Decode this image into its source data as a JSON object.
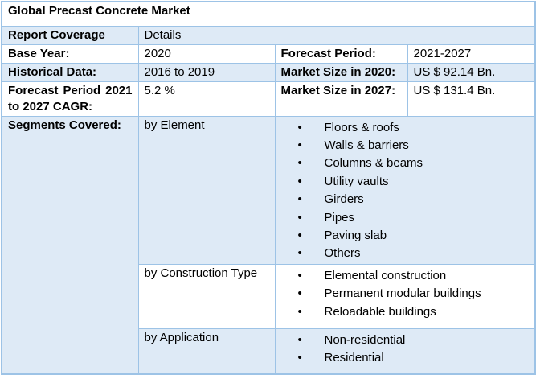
{
  "colors": {
    "band_fill": "#DEEAF6",
    "border": "#9DC3E6",
    "text": "#000000",
    "background": "#FFFFFF"
  },
  "table": {
    "title": "Global Precast Concrete Market",
    "coverage": {
      "label": "Report Coverage",
      "value": "Details"
    },
    "base_year": {
      "label": "Base Year:",
      "value": "2020"
    },
    "forecast_period": {
      "label": "Forecast Period:",
      "value": "2021-2027"
    },
    "historical_data": {
      "label": "Historical Data:",
      "value": "2016 to 2019"
    },
    "market_size_2020": {
      "label": "Market Size in 2020:",
      "value": "US $ 92.14 Bn."
    },
    "cagr": {
      "label": "Forecast Period 2021 to 2027 CAGR:",
      "value": "5.2 %"
    },
    "market_size_2027": {
      "label": "Market Size in 2027:",
      "value": "US $ 131.4 Bn."
    },
    "segments": {
      "label": "Segments Covered:",
      "groups": [
        {
          "name": "by Element",
          "items": [
            "Floors & roofs",
            "Walls & barriers",
            "Columns & beams",
            "Utility vaults",
            "Girders",
            "Pipes",
            "Paving slab",
            "Others"
          ]
        },
        {
          "name": "by Construction Type",
          "items": [
            "Elemental construction",
            "Permanent modular buildings",
            "Reloadable buildings"
          ]
        },
        {
          "name": "by Application",
          "items": [
            "Non-residential",
            "Residential"
          ]
        }
      ]
    }
  }
}
